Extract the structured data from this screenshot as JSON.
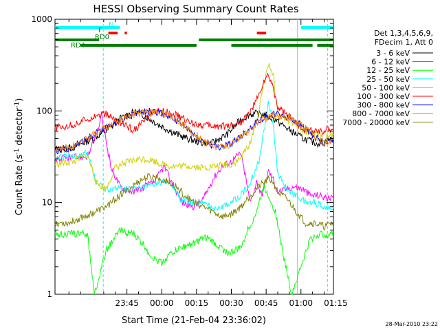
{
  "chart_data": {
    "type": "line",
    "title": "HESSI Observing Summary Count Rates",
    "xlabel": "Start Time (21-Feb-04 23:36:02)",
    "ylabel_main": "Count Rate (s",
    "ylabel_sup1": "-1",
    "ylabel_mid": " detector",
    "ylabel_sup2": "-1",
    "ylabel_end": ")",
    "yscale": "log",
    "ylim": [
      1,
      1000
    ],
    "xlim_minutes": [
      -22,
      98
    ],
    "x_ticks": [
      {
        "m": 9,
        "label": "23:45"
      },
      {
        "m": 24,
        "label": "00:00"
      },
      {
        "m": 39,
        "label": "00:15"
      },
      {
        "m": 54,
        "label": "00:30"
      },
      {
        "m": 69,
        "label": "00:45"
      },
      {
        "m": 84,
        "label": "01:00"
      },
      {
        "m": 99,
        "label": "01:15"
      }
    ],
    "y_ticks": [
      {
        "v": 1,
        "label": "1"
      },
      {
        "v": 10,
        "label": "10"
      },
      {
        "v": 100,
        "label": "100"
      },
      {
        "v": 1000,
        "label": "1000"
      }
    ],
    "legend_header": [
      "Det 1,3,4,5,6,9,",
      "FDecim 1, Att 0"
    ],
    "series": [
      {
        "name": "3 - 6 keV",
        "color": "#000000",
        "points": [
          [
            -22,
            38
          ],
          [
            -14,
            40
          ],
          [
            -7,
            48
          ],
          [
            0,
            60
          ],
          [
            6,
            82
          ],
          [
            12,
            98
          ],
          [
            17,
            88
          ],
          [
            23,
            70
          ],
          [
            29,
            58
          ],
          [
            35,
            50
          ],
          [
            41,
            45
          ],
          [
            46,
            45
          ],
          [
            52,
            55
          ],
          [
            58,
            80
          ],
          [
            62,
            92
          ],
          [
            67,
            94
          ],
          [
            73,
            80
          ],
          [
            79,
            62
          ],
          [
            85,
            50
          ],
          [
            91,
            44
          ],
          [
            98,
            50
          ]
        ]
      },
      {
        "name": "6 - 12 keV",
        "color": "#ff00ff",
        "points": [
          [
            -22,
            30
          ],
          [
            -14,
            31
          ],
          [
            -8,
            32
          ],
          [
            -4,
            55
          ],
          [
            -2,
            90
          ],
          [
            2,
            25
          ],
          [
            6,
            15
          ],
          [
            12,
            13
          ],
          [
            17,
            15
          ],
          [
            21,
            17
          ],
          [
            25,
            25
          ],
          [
            29,
            15
          ],
          [
            33,
            10
          ],
          [
            38,
            9
          ],
          [
            42,
            11
          ],
          [
            46,
            18
          ],
          [
            50,
            25
          ],
          [
            54,
            28
          ],
          [
            58,
            35
          ],
          [
            60,
            20
          ],
          [
            62,
            10
          ],
          [
            65,
            17
          ],
          [
            67,
            12
          ],
          [
            70,
            22
          ],
          [
            72,
            18
          ],
          [
            74,
            13
          ],
          [
            78,
            14
          ],
          [
            81,
            15
          ],
          [
            85,
            14
          ],
          [
            88,
            12
          ],
          [
            92,
            12
          ],
          [
            96,
            11
          ],
          [
            98,
            11
          ]
        ]
      },
      {
        "name": "12 - 25 keV",
        "color": "#00ff00",
        "points": [
          [
            -22,
            4.5
          ],
          [
            -12,
            4.6
          ],
          [
            -8,
            4.5
          ],
          [
            -5,
            1
          ],
          [
            0,
            3
          ],
          [
            6,
            5
          ],
          [
            12,
            4.5
          ],
          [
            16,
            3.5
          ],
          [
            20,
            2.5
          ],
          [
            24,
            2.2
          ],
          [
            28,
            2.8
          ],
          [
            32,
            3.2
          ],
          [
            36,
            3.5
          ],
          [
            40,
            3.8
          ],
          [
            43,
            4.2
          ],
          [
            48,
            3.4
          ],
          [
            53,
            2.8
          ],
          [
            58,
            3.2
          ],
          [
            61,
            5
          ],
          [
            64,
            7
          ],
          [
            66,
            10
          ],
          [
            68,
            15
          ],
          [
            70,
            12
          ],
          [
            73,
            8
          ],
          [
            76,
            3
          ],
          [
            80,
            1
          ],
          [
            84,
            2
          ],
          [
            88,
            4
          ],
          [
            92,
            4.5
          ],
          [
            98,
            4.5
          ]
        ]
      },
      {
        "name": "25 - 50 keV",
        "color": "#00ffff",
        "points": [
          [
            -22,
            30
          ],
          [
            -14,
            32
          ],
          [
            -8,
            35
          ],
          [
            -4,
            16
          ],
          [
            0,
            14
          ],
          [
            6,
            14
          ],
          [
            12,
            14
          ],
          [
            18,
            15
          ],
          [
            24,
            17
          ],
          [
            28,
            16
          ],
          [
            32,
            11
          ],
          [
            36,
            10
          ],
          [
            40,
            10
          ],
          [
            46,
            9
          ],
          [
            50,
            9
          ],
          [
            54,
            10
          ],
          [
            58,
            12
          ],
          [
            62,
            16
          ],
          [
            66,
            30
          ],
          [
            68,
            60
          ],
          [
            70,
            125
          ],
          [
            72,
            75
          ],
          [
            74,
            20
          ],
          [
            78,
            14
          ],
          [
            82,
            12
          ],
          [
            86,
            10
          ],
          [
            90,
            10
          ],
          [
            94,
            9
          ],
          [
            98,
            9
          ]
        ]
      },
      {
        "name": "50 - 100 keV",
        "color": "#d0d000",
        "points": [
          [
            -22,
            26
          ],
          [
            -14,
            28
          ],
          [
            -8,
            33
          ],
          [
            -4,
            16
          ],
          [
            0,
            14
          ],
          [
            4,
            24
          ],
          [
            8,
            27
          ],
          [
            12,
            29
          ],
          [
            16,
            30
          ],
          [
            20,
            29
          ],
          [
            24,
            26
          ],
          [
            28,
            25
          ],
          [
            32,
            25
          ],
          [
            36,
            25
          ],
          [
            42,
            24
          ],
          [
            48,
            25
          ],
          [
            54,
            26
          ],
          [
            58,
            30
          ],
          [
            62,
            45
          ],
          [
            66,
            100
          ],
          [
            68,
            210
          ],
          [
            70,
            330
          ],
          [
            72,
            260
          ],
          [
            74,
            90
          ],
          [
            78,
            80
          ],
          [
            82,
            70
          ],
          [
            86,
            60
          ],
          [
            90,
            56
          ],
          [
            94,
            50
          ],
          [
            98,
            55
          ]
        ]
      },
      {
        "name": "100 - 300 keV",
        "color": "#ff0000",
        "points": [
          [
            -22,
            65
          ],
          [
            -14,
            70
          ],
          [
            -8,
            82
          ],
          [
            -4,
            90
          ],
          [
            0,
            92
          ],
          [
            4,
            80
          ],
          [
            8,
            70
          ],
          [
            12,
            62
          ],
          [
            16,
            75
          ],
          [
            20,
            95
          ],
          [
            24,
            100
          ],
          [
            28,
            96
          ],
          [
            32,
            85
          ],
          [
            36,
            75
          ],
          [
            42,
            70
          ],
          [
            48,
            68
          ],
          [
            54,
            70
          ],
          [
            58,
            76
          ],
          [
            62,
            95
          ],
          [
            66,
            150
          ],
          [
            68,
            210
          ],
          [
            70,
            240
          ],
          [
            72,
            180
          ],
          [
            74,
            110
          ],
          [
            78,
            90
          ],
          [
            82,
            75
          ],
          [
            86,
            62
          ],
          [
            90,
            60
          ],
          [
            94,
            60
          ],
          [
            98,
            65
          ]
        ]
      },
      {
        "name": "300 - 800 keV",
        "color": "#0000ff",
        "points": [
          [
            -22,
            37
          ],
          [
            -16,
            39
          ],
          [
            -10,
            46
          ],
          [
            -4,
            58
          ],
          [
            2,
            70
          ],
          [
            8,
            85
          ],
          [
            14,
            96
          ],
          [
            20,
            99
          ],
          [
            24,
            95
          ],
          [
            30,
            80
          ],
          [
            36,
            60
          ],
          [
            42,
            46
          ],
          [
            48,
            40
          ],
          [
            54,
            44
          ],
          [
            60,
            58
          ],
          [
            66,
            80
          ],
          [
            72,
            93
          ],
          [
            78,
            88
          ],
          [
            84,
            70
          ],
          [
            90,
            52
          ],
          [
            94,
            45
          ],
          [
            98,
            50
          ]
        ]
      },
      {
        "name": "800 - 7000 keV",
        "color": "#ff8800",
        "points": [
          [
            -22,
            38
          ],
          [
            -16,
            40
          ],
          [
            -10,
            47
          ],
          [
            -4,
            58
          ],
          [
            2,
            70
          ],
          [
            8,
            84
          ],
          [
            14,
            95
          ],
          [
            20,
            98
          ],
          [
            24,
            96
          ],
          [
            30,
            82
          ],
          [
            36,
            62
          ],
          [
            42,
            47
          ],
          [
            48,
            40
          ],
          [
            54,
            43
          ],
          [
            60,
            56
          ],
          [
            66,
            78
          ],
          [
            72,
            90
          ],
          [
            78,
            86
          ],
          [
            84,
            70
          ],
          [
            90,
            53
          ],
          [
            94,
            44
          ],
          [
            98,
            49
          ]
        ]
      },
      {
        "name": "7000 - 20000 keV",
        "color": "#808000",
        "points": [
          [
            -22,
            6
          ],
          [
            -16,
            6
          ],
          [
            -10,
            7
          ],
          [
            -4,
            8
          ],
          [
            0,
            9
          ],
          [
            6,
            12
          ],
          [
            10,
            14
          ],
          [
            14,
            17
          ],
          [
            18,
            19
          ],
          [
            22,
            19
          ],
          [
            26,
            17
          ],
          [
            30,
            15
          ],
          [
            34,
            12
          ],
          [
            38,
            10
          ],
          [
            42,
            9
          ],
          [
            46,
            8
          ],
          [
            50,
            7
          ],
          [
            54,
            7.5
          ],
          [
            58,
            9
          ],
          [
            62,
            12
          ],
          [
            66,
            15
          ],
          [
            70,
            18
          ],
          [
            72,
            17
          ],
          [
            74,
            13
          ],
          [
            78,
            11
          ],
          [
            82,
            8
          ],
          [
            86,
            6
          ],
          [
            90,
            6
          ],
          [
            94,
            5.5
          ],
          [
            98,
            6
          ]
        ]
      }
    ],
    "flags": [
      {
        "name": "N",
        "color": "#00ffff",
        "segments": [
          [
            -22,
            6
          ],
          [
            84,
            98
          ]
        ]
      },
      {
        "name": "F",
        "color": "#ff0000",
        "segments": [
          [
            1,
            5
          ],
          [
            8,
            9
          ],
          [
            65,
            69
          ]
        ]
      },
      {
        "name": "RD0",
        "color": "#008000",
        "segments": [
          [
            -22,
            -3
          ],
          [
            40,
            98
          ]
        ]
      },
      {
        "name": "RD4",
        "color": "#008000",
        "segments": [
          [
            -11,
            39
          ],
          [
            54,
            89
          ],
          [
            91,
            98
          ]
        ]
      }
    ],
    "verticals": [
      {
        "m": -1.2,
        "color": "#00ffff",
        "style": "dashed"
      },
      {
        "m": 82.5,
        "color": "#00ffff",
        "style": "solid"
      },
      {
        "m": 95.5,
        "color": "#00ffff",
        "style": "dashed"
      }
    ],
    "footer_date": "28-Mar-2010 23:22"
  }
}
